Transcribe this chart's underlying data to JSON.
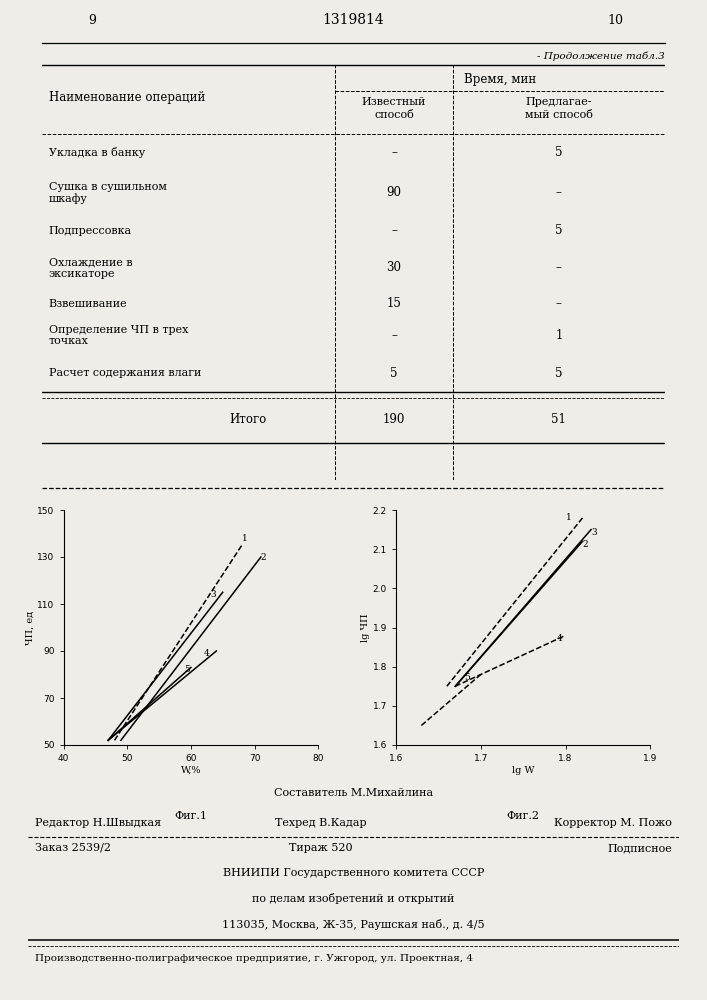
{
  "page_numbers": [
    "9",
    "1319814",
    "10"
  ],
  "continuation_text": "- Продолжение табл.3",
  "rows": [
    [
      "Укладка в банку",
      "–",
      "5"
    ],
    [
      "Сушка в сушильном\nшкафу",
      "90",
      "–"
    ],
    [
      "Подпрессовка",
      "–",
      "5"
    ],
    [
      "Охлаждение в\nэксикаторе",
      "30",
      "–"
    ],
    [
      "Взвешивание",
      "15",
      "–"
    ],
    [
      "Определение ЧП в трех\nточках",
      "–",
      "1"
    ],
    [
      "Расчет содержания влаги",
      "5",
      "5"
    ],
    [
      "Итого",
      "190",
      "51"
    ]
  ],
  "fig1": {
    "ylabel": "ЧП, ед",
    "xlabel": "W,%",
    "figlabel": "Фиг.1",
    "xlim": [
      40,
      80
    ],
    "ylim": [
      50,
      150
    ],
    "xticks": [
      40,
      50,
      60,
      70,
      80
    ],
    "yticks": [
      50,
      70,
      90,
      110,
      130,
      150
    ],
    "curves": [
      {
        "label": "1",
        "style": "--",
        "x": [
          48,
          68
        ],
        "y": [
          52,
          135
        ]
      },
      {
        "label": "2",
        "style": "-",
        "x": [
          49,
          71
        ],
        "y": [
          52,
          130
        ]
      },
      {
        "label": "3",
        "style": "-",
        "x": [
          47,
          65
        ],
        "y": [
          52,
          115
        ]
      },
      {
        "label": "4",
        "style": "-",
        "x": [
          47,
          64
        ],
        "y": [
          52,
          90
        ]
      },
      {
        "label": "5",
        "style": "-",
        "x": [
          47,
          60
        ],
        "y": [
          52,
          83
        ]
      }
    ],
    "label_pos": [
      [
        68,
        136,
        "1"
      ],
      [
        71,
        128,
        "2"
      ],
      [
        63,
        112,
        "3"
      ],
      [
        62,
        87,
        "4"
      ],
      [
        59,
        80,
        "5"
      ]
    ]
  },
  "fig2": {
    "ylabel": "lg ЧП",
    "xlabel": "lg W",
    "figlabel": "Фиг.2",
    "xlim": [
      1.6,
      1.9
    ],
    "ylim": [
      1.6,
      2.2
    ],
    "xticks": [
      1.6,
      1.7,
      1.8,
      1.9
    ],
    "yticks": [
      1.6,
      1.7,
      1.8,
      1.9,
      2.0,
      2.1,
      2.2
    ],
    "curves": [
      {
        "label": "1",
        "style": "--",
        "x": [
          1.66,
          1.82
        ],
        "y": [
          1.75,
          2.18
        ]
      },
      {
        "label": "2",
        "style": "-",
        "x": [
          1.67,
          1.82
        ],
        "y": [
          1.75,
          2.12
        ]
      },
      {
        "label": "3",
        "style": "-",
        "x": [
          1.67,
          1.83
        ],
        "y": [
          1.75,
          2.15
        ]
      },
      {
        "label": "4",
        "style": "--",
        "x": [
          1.67,
          1.8
        ],
        "y": [
          1.75,
          1.88
        ]
      },
      {
        "label": "5",
        "style": "--",
        "x": [
          1.63,
          1.7
        ],
        "y": [
          1.65,
          1.78
        ]
      }
    ],
    "label_pos": [
      [
        1.8,
        2.17,
        "1"
      ],
      [
        1.82,
        2.1,
        "2"
      ],
      [
        1.83,
        2.13,
        "3"
      ],
      [
        1.79,
        1.86,
        "4"
      ],
      [
        1.68,
        1.76,
        "5"
      ]
    ]
  },
  "footer": {
    "line1": "Составитель М.Михайлина",
    "line2_parts": [
      "Редактор Н.Швыдкая",
      "Техред В.Кадар",
      "Корректор М. Пожо"
    ],
    "line3_parts": [
      "Заказ 2539/2",
      "Тираж 520",
      "Подписное"
    ],
    "line4": "ВНИИПИ Государственного комитета СССР",
    "line5": "по делам изобретений и открытий",
    "line6": "113035, Москва, Ж-35, Раушская наб., д. 4/5",
    "line7": "Производственно-полиграфическое предприятие, г. Ужгород, ул. Проектная, 4"
  },
  "bg_color": "#f0ede8"
}
